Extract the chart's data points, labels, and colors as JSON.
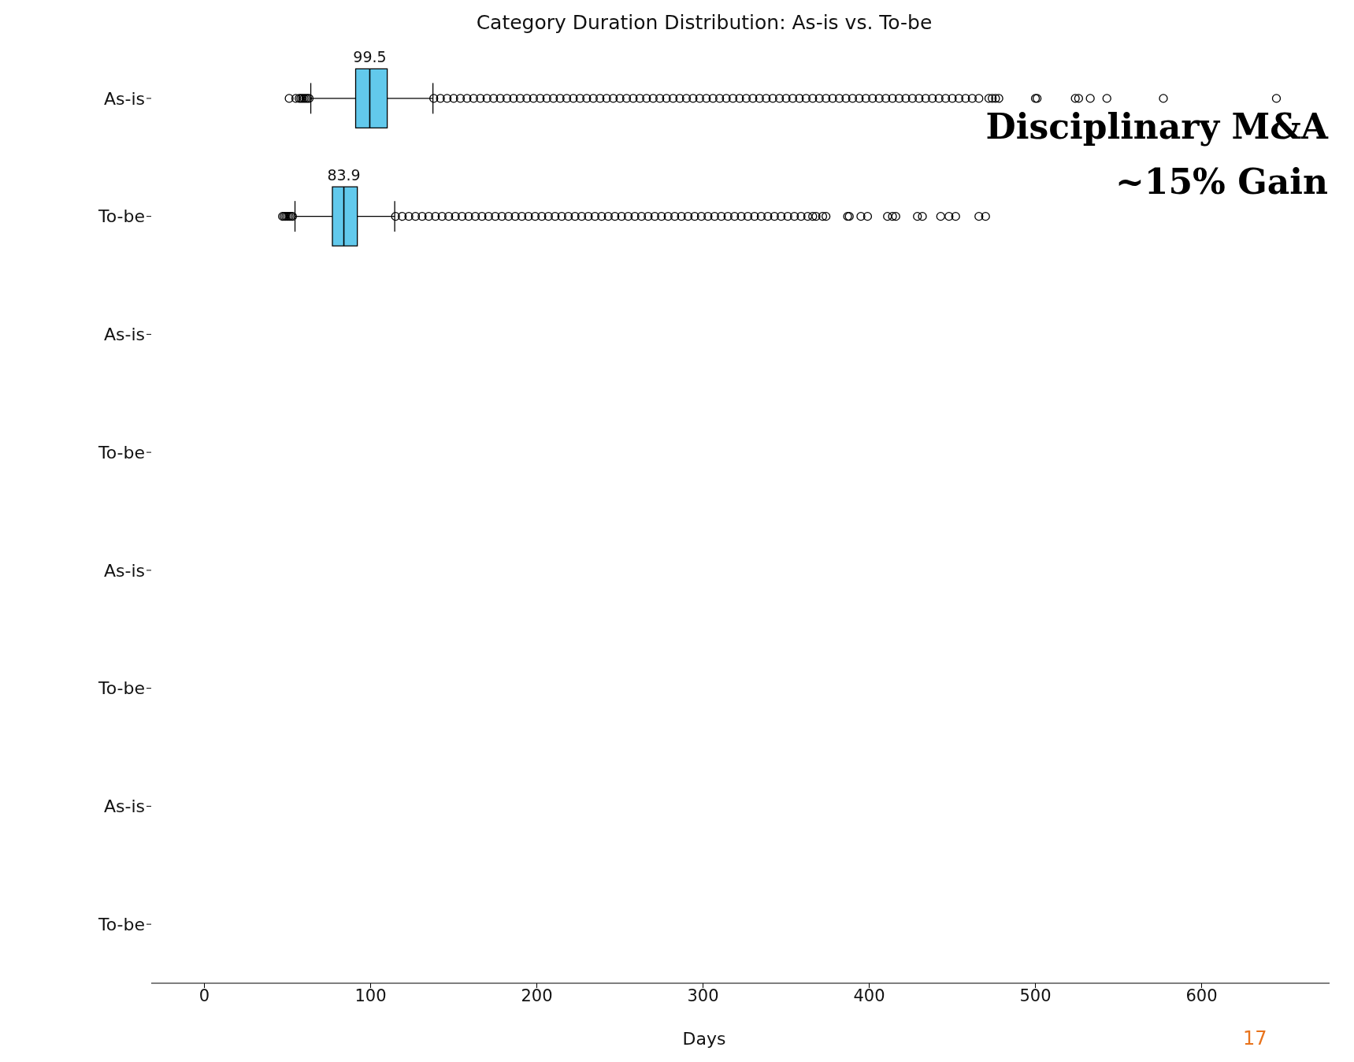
{
  "chart_data": {
    "type": "box",
    "title": "Category Duration Distribution: As-is vs. To-be",
    "xlabel": "Days",
    "orientation": "horizontal",
    "categories": [
      "As-is",
      "To-be",
      "As-is",
      "To-be",
      "As-is",
      "To-be",
      "As-is",
      "To-be"
    ],
    "color": "#62c9ec",
    "xlim": [
      -32,
      677
    ],
    "xticks": [
      0,
      100,
      200,
      300,
      400,
      500,
      600
    ],
    "boxes": [
      {
        "low": 64,
        "q1": 91,
        "median": 99.5,
        "q3": 110,
        "high": 137.5,
        "outliers": [
          51,
          55,
          57,
          58,
          59,
          60,
          61,
          62,
          63,
          138,
          142,
          146,
          150,
          154,
          158,
          162,
          166,
          170,
          174,
          178,
          182,
          186,
          190,
          194,
          198,
          202,
          206,
          210,
          214,
          218,
          222,
          226,
          230,
          234,
          238,
          242,
          246,
          250,
          254,
          258,
          262,
          266,
          270,
          274,
          278,
          282,
          286,
          290,
          294,
          298,
          302,
          306,
          310,
          314,
          318,
          322,
          326,
          330,
          334,
          338,
          342,
          346,
          350,
          354,
          358,
          362,
          366,
          370,
          374,
          378,
          382,
          386,
          390,
          394,
          398,
          402,
          406,
          410,
          414,
          418,
          422,
          426,
          430,
          434,
          438,
          442,
          446,
          450,
          454,
          458,
          462,
          466,
          472,
          474,
          476,
          478,
          500,
          501,
          524,
          526,
          533,
          543,
          577,
          645
        ]
      },
      {
        "low": 54.5,
        "q1": 77,
        "median": 83.9,
        "q3": 92,
        "high": 114.5,
        "outliers": [
          47,
          48,
          49,
          50,
          51,
          52,
          53,
          115,
          119,
          123,
          127,
          131,
          135,
          139,
          143,
          147,
          151,
          155,
          159,
          163,
          167,
          171,
          175,
          179,
          183,
          187,
          191,
          195,
          199,
          203,
          207,
          211,
          215,
          219,
          223,
          227,
          231,
          235,
          239,
          243,
          247,
          251,
          255,
          259,
          263,
          267,
          271,
          275,
          279,
          283,
          287,
          291,
          295,
          299,
          303,
          307,
          311,
          315,
          319,
          323,
          327,
          331,
          335,
          339,
          343,
          347,
          351,
          355,
          359,
          363,
          366,
          368,
          372,
          374,
          387,
          388,
          395,
          399,
          411,
          414,
          416,
          429,
          432,
          443,
          448,
          452,
          466,
          470
        ]
      },
      null,
      null,
      null,
      null,
      null,
      null
    ],
    "annotations": [
      {
        "text": "99.5",
        "x": 99.5,
        "y": "As-is"
      },
      {
        "text": "83.9",
        "x": 83.9,
        "y": "To-be"
      },
      "Disciplinary M&A\n~15% Gain",
      "17"
    ]
  }
}
